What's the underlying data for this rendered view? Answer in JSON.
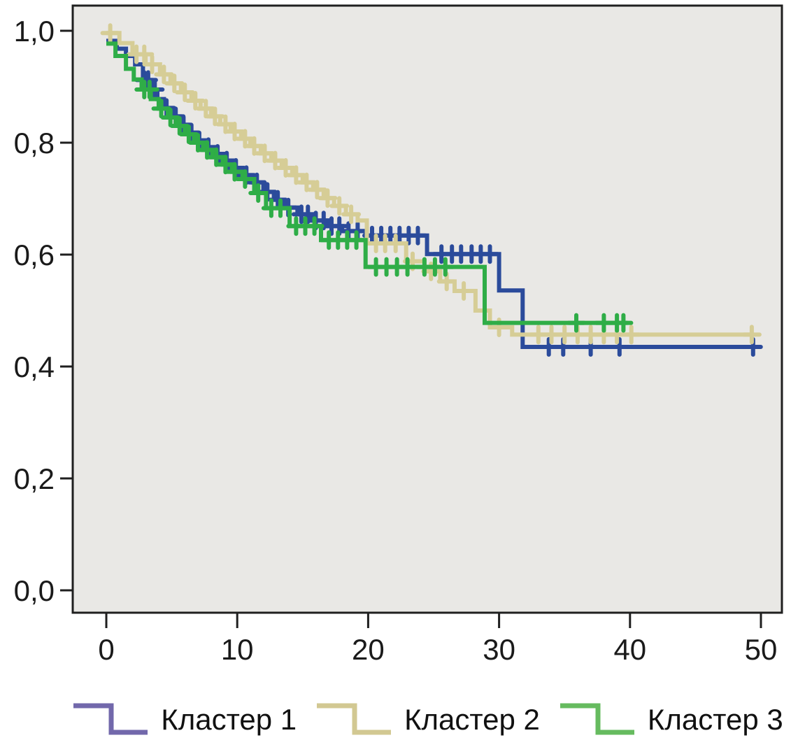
{
  "figure": {
    "background": "#ffffff",
    "plot_background": "#e9e8e5",
    "frame_color": "#1f1f1f",
    "text_color": "#1a1a1a"
  },
  "chart_data": {
    "type": "line",
    "variant": "kaplan_meier_step_survival",
    "title": "",
    "xlabel": "",
    "ylabel": "",
    "grid": false,
    "legend_position": "bottom-center",
    "xlim": [
      -2.6,
      52.3
    ],
    "ylim": [
      -0.04,
      1.045
    ],
    "x_ticks": {
      "values": [
        0,
        10,
        20,
        30,
        40,
        50
      ],
      "labels": [
        "0",
        "10",
        "20",
        "30",
        "40",
        "50"
      ]
    },
    "y_ticks": {
      "values": [
        1.0,
        0.8,
        0.6,
        0.4,
        0.2,
        0.0
      ],
      "labels": [
        "1,0",
        "0,8",
        "0,6",
        "0,4",
        "0,2",
        "0,0"
      ]
    },
    "series": [
      {
        "name": "Кластер 1",
        "color": "#2b4b9b",
        "legend_color": "#7268ab",
        "steps": [
          [
            0,
            0.982
          ],
          [
            0.8,
            0.968
          ],
          [
            1.5,
            0.955
          ],
          [
            2.2,
            0.94
          ],
          [
            2.8,
            0.912
          ],
          [
            3.4,
            0.895
          ],
          [
            3.9,
            0.878
          ],
          [
            4.4,
            0.862
          ],
          [
            5.0,
            0.847
          ],
          [
            5.6,
            0.832
          ],
          [
            6.2,
            0.818
          ],
          [
            6.9,
            0.804
          ],
          [
            7.6,
            0.792
          ],
          [
            8.3,
            0.78
          ],
          [
            9.0,
            0.768
          ],
          [
            9.7,
            0.755
          ],
          [
            10.4,
            0.742
          ],
          [
            11.2,
            0.729
          ],
          [
            12.0,
            0.712
          ],
          [
            12.8,
            0.698
          ],
          [
            13.6,
            0.684
          ],
          [
            14.6,
            0.672
          ],
          [
            15.7,
            0.661
          ],
          [
            16.9,
            0.651
          ],
          [
            18.0,
            0.642
          ],
          [
            19.8,
            0.634
          ],
          [
            24.5,
            0.601
          ],
          [
            30.0,
            0.536
          ],
          [
            31.8,
            0.435
          ]
        ],
        "end_time": 49.4,
        "censors": [
          2.9,
          3.2,
          3.7,
          4.6,
          5.3,
          5.9,
          6.5,
          7.1,
          7.8,
          8.5,
          9.2,
          9.9,
          10.7,
          11.5,
          12.3,
          13.1,
          13.9,
          14.9,
          15.4,
          16.0,
          16.6,
          17.2,
          17.8,
          18.5,
          19.2,
          20.3,
          21.0,
          21.7,
          22.4,
          23.1,
          23.8,
          25.6,
          26.4,
          27.1,
          27.9,
          28.6,
          29.3,
          33.8,
          34.9,
          37.0,
          39.2,
          49.4
        ]
      },
      {
        "name": "Кластер 2",
        "color": "#d6cd96",
        "legend_color": "#d2c892",
        "steps": [
          [
            0,
            0.996
          ],
          [
            1.0,
            0.978
          ],
          [
            2.0,
            0.958
          ],
          [
            3.0,
            0.94
          ],
          [
            4.1,
            0.922
          ],
          [
            4.9,
            0.906
          ],
          [
            5.7,
            0.89
          ],
          [
            6.5,
            0.875
          ],
          [
            7.2,
            0.861
          ],
          [
            8.0,
            0.847
          ],
          [
            8.7,
            0.833
          ],
          [
            9.5,
            0.82
          ],
          [
            10.3,
            0.807
          ],
          [
            11.0,
            0.794
          ],
          [
            11.8,
            0.781
          ],
          [
            12.6,
            0.768
          ],
          [
            13.4,
            0.755
          ],
          [
            14.2,
            0.742
          ],
          [
            15.0,
            0.729
          ],
          [
            15.8,
            0.716
          ],
          [
            16.6,
            0.701
          ],
          [
            17.4,
            0.687
          ],
          [
            18.3,
            0.672
          ],
          [
            19.2,
            0.661
          ],
          [
            19.9,
            0.62
          ],
          [
            22.9,
            0.588
          ],
          [
            24.3,
            0.57
          ],
          [
            25.5,
            0.552
          ],
          [
            26.6,
            0.535
          ],
          [
            28.2,
            0.5
          ],
          [
            29.3,
            0.47
          ],
          [
            31.0,
            0.457
          ]
        ],
        "end_time": 49.3,
        "censors": [
          0.3,
          2.3,
          2.9,
          3.5,
          4.4,
          5.2,
          6.0,
          6.8,
          7.6,
          8.3,
          9.1,
          9.8,
          10.6,
          11.3,
          12.1,
          12.9,
          13.7,
          14.5,
          15.3,
          16.1,
          16.9,
          17.8,
          18.7,
          20.6,
          21.3,
          22.1,
          23.4,
          24.8,
          26.0,
          27.3,
          30.0,
          33.0,
          34.0,
          35.0,
          36.0,
          37.0,
          38.0,
          39.0,
          40.1,
          49.3
        ]
      },
      {
        "name": "Кластер 3",
        "color": "#2fad47",
        "legend_color": "#66bb5f",
        "steps": [
          [
            0,
            0.977
          ],
          [
            0.7,
            0.955
          ],
          [
            1.5,
            0.932
          ],
          [
            2.1,
            0.913
          ],
          [
            2.7,
            0.895
          ],
          [
            3.4,
            0.878
          ],
          [
            4.0,
            0.861
          ],
          [
            4.7,
            0.845
          ],
          [
            5.3,
            0.83
          ],
          [
            6.0,
            0.815
          ],
          [
            6.7,
            0.8
          ],
          [
            7.4,
            0.787
          ],
          [
            8.1,
            0.774
          ],
          [
            8.9,
            0.761
          ],
          [
            9.6,
            0.748
          ],
          [
            10.4,
            0.735
          ],
          [
            11.3,
            0.71
          ],
          [
            12.2,
            0.683
          ],
          [
            14.0,
            0.651
          ],
          [
            16.4,
            0.626
          ],
          [
            19.8,
            0.578
          ],
          [
            28.9,
            0.478
          ]
        ],
        "end_time": 39.8,
        "censors": [
          2.9,
          3.3,
          4.2,
          4.9,
          5.6,
          6.3,
          7.0,
          7.7,
          8.4,
          9.1,
          9.8,
          10.6,
          11.6,
          12.6,
          13.3,
          14.5,
          15.2,
          15.9,
          17.0,
          17.7,
          18.4,
          19.1,
          20.6,
          21.4,
          22.2,
          23.0,
          24.3,
          25.1,
          25.9,
          35.9,
          38.0,
          39.0,
          39.5
        ]
      }
    ]
  },
  "legend": {
    "items": [
      {
        "label": "Кластер 1"
      },
      {
        "label": "Кластер 2"
      },
      {
        "label": "Кластер 3"
      }
    ]
  }
}
